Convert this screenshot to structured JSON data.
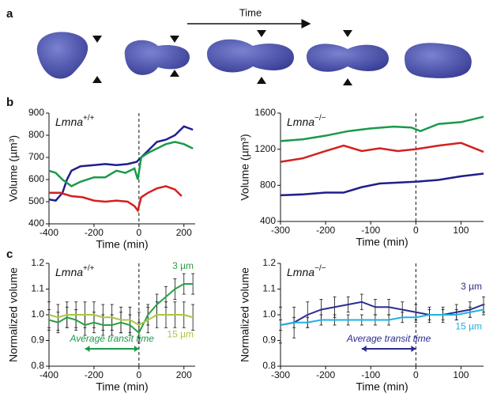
{
  "panel_labels": [
    "a",
    "b",
    "c"
  ],
  "panel_a": {
    "arrow_label": "Time"
  },
  "chart_data": [
    {
      "type": "line",
      "title": "Lmna",
      "title_sup": "+/+",
      "xlabel": "Time (min)",
      "ylabel": "Volume (µm³)",
      "xlim": [
        -400,
        250
      ],
      "xticks": [
        -400,
        -200,
        0,
        200
      ],
      "ylim": [
        400,
        900
      ],
      "yticks": [
        400,
        500,
        600,
        700,
        800,
        900
      ],
      "vline": 0,
      "series": [
        {
          "color": "#1f1f8c",
          "x": [
            -400,
            -370,
            -340,
            -320,
            -300,
            -260,
            -200,
            -150,
            -100,
            -50,
            -10,
            10,
            40,
            80,
            120,
            160,
            200,
            240
          ],
          "values": [
            510,
            505,
            540,
            600,
            640,
            660,
            665,
            670,
            665,
            670,
            680,
            700,
            730,
            770,
            780,
            800,
            840,
            825
          ]
        },
        {
          "color": "#1a9a4a",
          "x": [
            -400,
            -370,
            -340,
            -300,
            -260,
            -200,
            -150,
            -100,
            -60,
            -20,
            -5,
            10,
            40,
            80,
            120,
            160,
            200,
            240
          ],
          "values": [
            640,
            630,
            600,
            570,
            590,
            610,
            610,
            640,
            630,
            650,
            600,
            700,
            720,
            740,
            760,
            770,
            760,
            740
          ]
        },
        {
          "color": "#d42020",
          "x": [
            -400,
            -350,
            -300,
            -250,
            -200,
            -150,
            -100,
            -50,
            -20,
            -5,
            10,
            40,
            80,
            120,
            160,
            190
          ],
          "values": [
            540,
            540,
            525,
            520,
            505,
            500,
            505,
            500,
            480,
            460,
            520,
            540,
            560,
            570,
            555,
            525
          ]
        }
      ]
    },
    {
      "type": "line",
      "title": "Lmna",
      "title_sup": "−/−",
      "xlabel": "Time (min)",
      "ylabel": "Volume (µm³)",
      "xlim": [
        -300,
        150
      ],
      "xticks": [
        -300,
        -200,
        -100,
        0,
        100
      ],
      "ylim": [
        400,
        1600
      ],
      "yticks": [
        400,
        800,
        1200,
        1600
      ],
      "vline": 0,
      "series": [
        {
          "color": "#1a9a4a",
          "x": [
            -300,
            -250,
            -200,
            -150,
            -100,
            -50,
            -10,
            10,
            50,
            100,
            150
          ],
          "values": [
            1290,
            1310,
            1350,
            1400,
            1430,
            1450,
            1440,
            1400,
            1480,
            1500,
            1560
          ]
        },
        {
          "color": "#d42020",
          "x": [
            -300,
            -250,
            -200,
            -160,
            -120,
            -80,
            -40,
            0,
            50,
            100,
            150
          ],
          "values": [
            1060,
            1100,
            1180,
            1240,
            1180,
            1210,
            1180,
            1200,
            1240,
            1270,
            1170
          ]
        },
        {
          "color": "#1f1f8c",
          "x": [
            -300,
            -250,
            -200,
            -160,
            -120,
            -80,
            -40,
            0,
            50,
            100,
            150
          ],
          "values": [
            690,
            700,
            720,
            720,
            780,
            820,
            830,
            840,
            860,
            900,
            930
          ]
        }
      ]
    },
    {
      "type": "errorline",
      "title": "Lmna",
      "title_sup": "+/+",
      "xlabel": "Time (min)",
      "ylabel": "Normalized volume",
      "xlim": [
        -400,
        250
      ],
      "xticks": [
        -400,
        -200,
        0,
        200
      ],
      "ylim": [
        0.8,
        1.2
      ],
      "yticks": [
        0.8,
        0.9,
        {
          "value": 1,
          "label": "1.0"
        },
        1.1,
        1.2
      ],
      "vline": 0,
      "annotation": {
        "text": "Average transit time",
        "color": "#1a9a4a",
        "span": [
          -240,
          0
        ]
      },
      "series": [
        {
          "name": "3 µm",
          "color": "#2aa040",
          "x": [
            -400,
            -360,
            -320,
            -280,
            -240,
            -200,
            -160,
            -120,
            -80,
            -40,
            0,
            40,
            80,
            120,
            160,
            200,
            240
          ],
          "values": [
            0.98,
            0.97,
            0.99,
            0.98,
            0.96,
            0.97,
            0.96,
            0.96,
            0.97,
            0.96,
            0.93,
            1.0,
            1.04,
            1.07,
            1.1,
            1.12,
            1.12
          ],
          "errors": [
            0.04,
            0.04,
            0.04,
            0.04,
            0.04,
            0.04,
            0.04,
            0.04,
            0.04,
            0.04,
            0.04,
            0.04,
            0.04,
            0.04,
            0.04,
            0.04,
            0.04
          ]
        },
        {
          "name": "15 µm",
          "color": "#a8c840",
          "x": [
            -400,
            -360,
            -320,
            -280,
            -240,
            -200,
            -160,
            -120,
            -80,
            -40,
            0,
            40,
            80,
            120,
            160,
            200,
            240
          ],
          "values": [
            1.0,
            0.99,
            1.0,
            1.0,
            1.0,
            1.0,
            0.99,
            0.99,
            0.98,
            0.98,
            0.96,
            0.98,
            1.0,
            1.0,
            1.0,
            1.0,
            0.99
          ],
          "errors": [
            0.05,
            0.05,
            0.05,
            0.05,
            0.05,
            0.05,
            0.05,
            0.05,
            0.05,
            0.05,
            0.05,
            0.05,
            0.05,
            0.05,
            0.05,
            0.05,
            0.05
          ]
        }
      ]
    },
    {
      "type": "errorline",
      "title": "Lmna",
      "title_sup": "−/−",
      "xlabel": "Time (min)",
      "ylabel": "Normalized volume",
      "xlim": [
        -300,
        150
      ],
      "xticks": [
        -300,
        -200,
        -100,
        0,
        100
      ],
      "ylim": [
        0.8,
        1.2
      ],
      "yticks": [
        0.8,
        0.9,
        {
          "value": 1,
          "label": "1.0"
        },
        1.1,
        1.2
      ],
      "vline": 0,
      "annotation": {
        "text": "Average transit time",
        "color": "#2b2b90",
        "span": [
          -120,
          0
        ]
      },
      "series": [
        {
          "name": "3 µm",
          "color": "#2b2b90",
          "x": [
            -300,
            -270,
            -240,
            -210,
            -180,
            -150,
            -120,
            -90,
            -60,
            -30,
            0,
            30,
            60,
            90,
            120,
            150
          ],
          "values": [
            0.96,
            0.97,
            1.0,
            1.02,
            1.03,
            1.04,
            1.05,
            1.03,
            1.03,
            1.02,
            1.01,
            1.0,
            1.0,
            1.01,
            1.02,
            1.04
          ],
          "errors": [
            0.07,
            0.06,
            0.05,
            0.04,
            0.04,
            0.03,
            0.03,
            0.03,
            0.03,
            0.03,
            0.03,
            0.03,
            0.03,
            0.03,
            0.03,
            0.03
          ]
        },
        {
          "name": "15 µm",
          "color": "#20b0e0",
          "x": [
            -300,
            -270,
            -240,
            -210,
            -180,
            -150,
            -120,
            -90,
            -60,
            -30,
            0,
            30,
            60,
            90,
            120,
            150
          ],
          "values": [
            0.96,
            0.97,
            0.97,
            0.98,
            0.98,
            0.98,
            0.98,
            0.98,
            0.98,
            0.99,
            0.99,
            1.0,
            1.0,
            1.0,
            1.01,
            1.02
          ],
          "errors": [
            0.02,
            0.02,
            0.02,
            0.02,
            0.02,
            0.02,
            0.02,
            0.02,
            0.02,
            0.02,
            0.02,
            0.02,
            0.02,
            0.02,
            0.02,
            0.02
          ]
        }
      ]
    }
  ]
}
